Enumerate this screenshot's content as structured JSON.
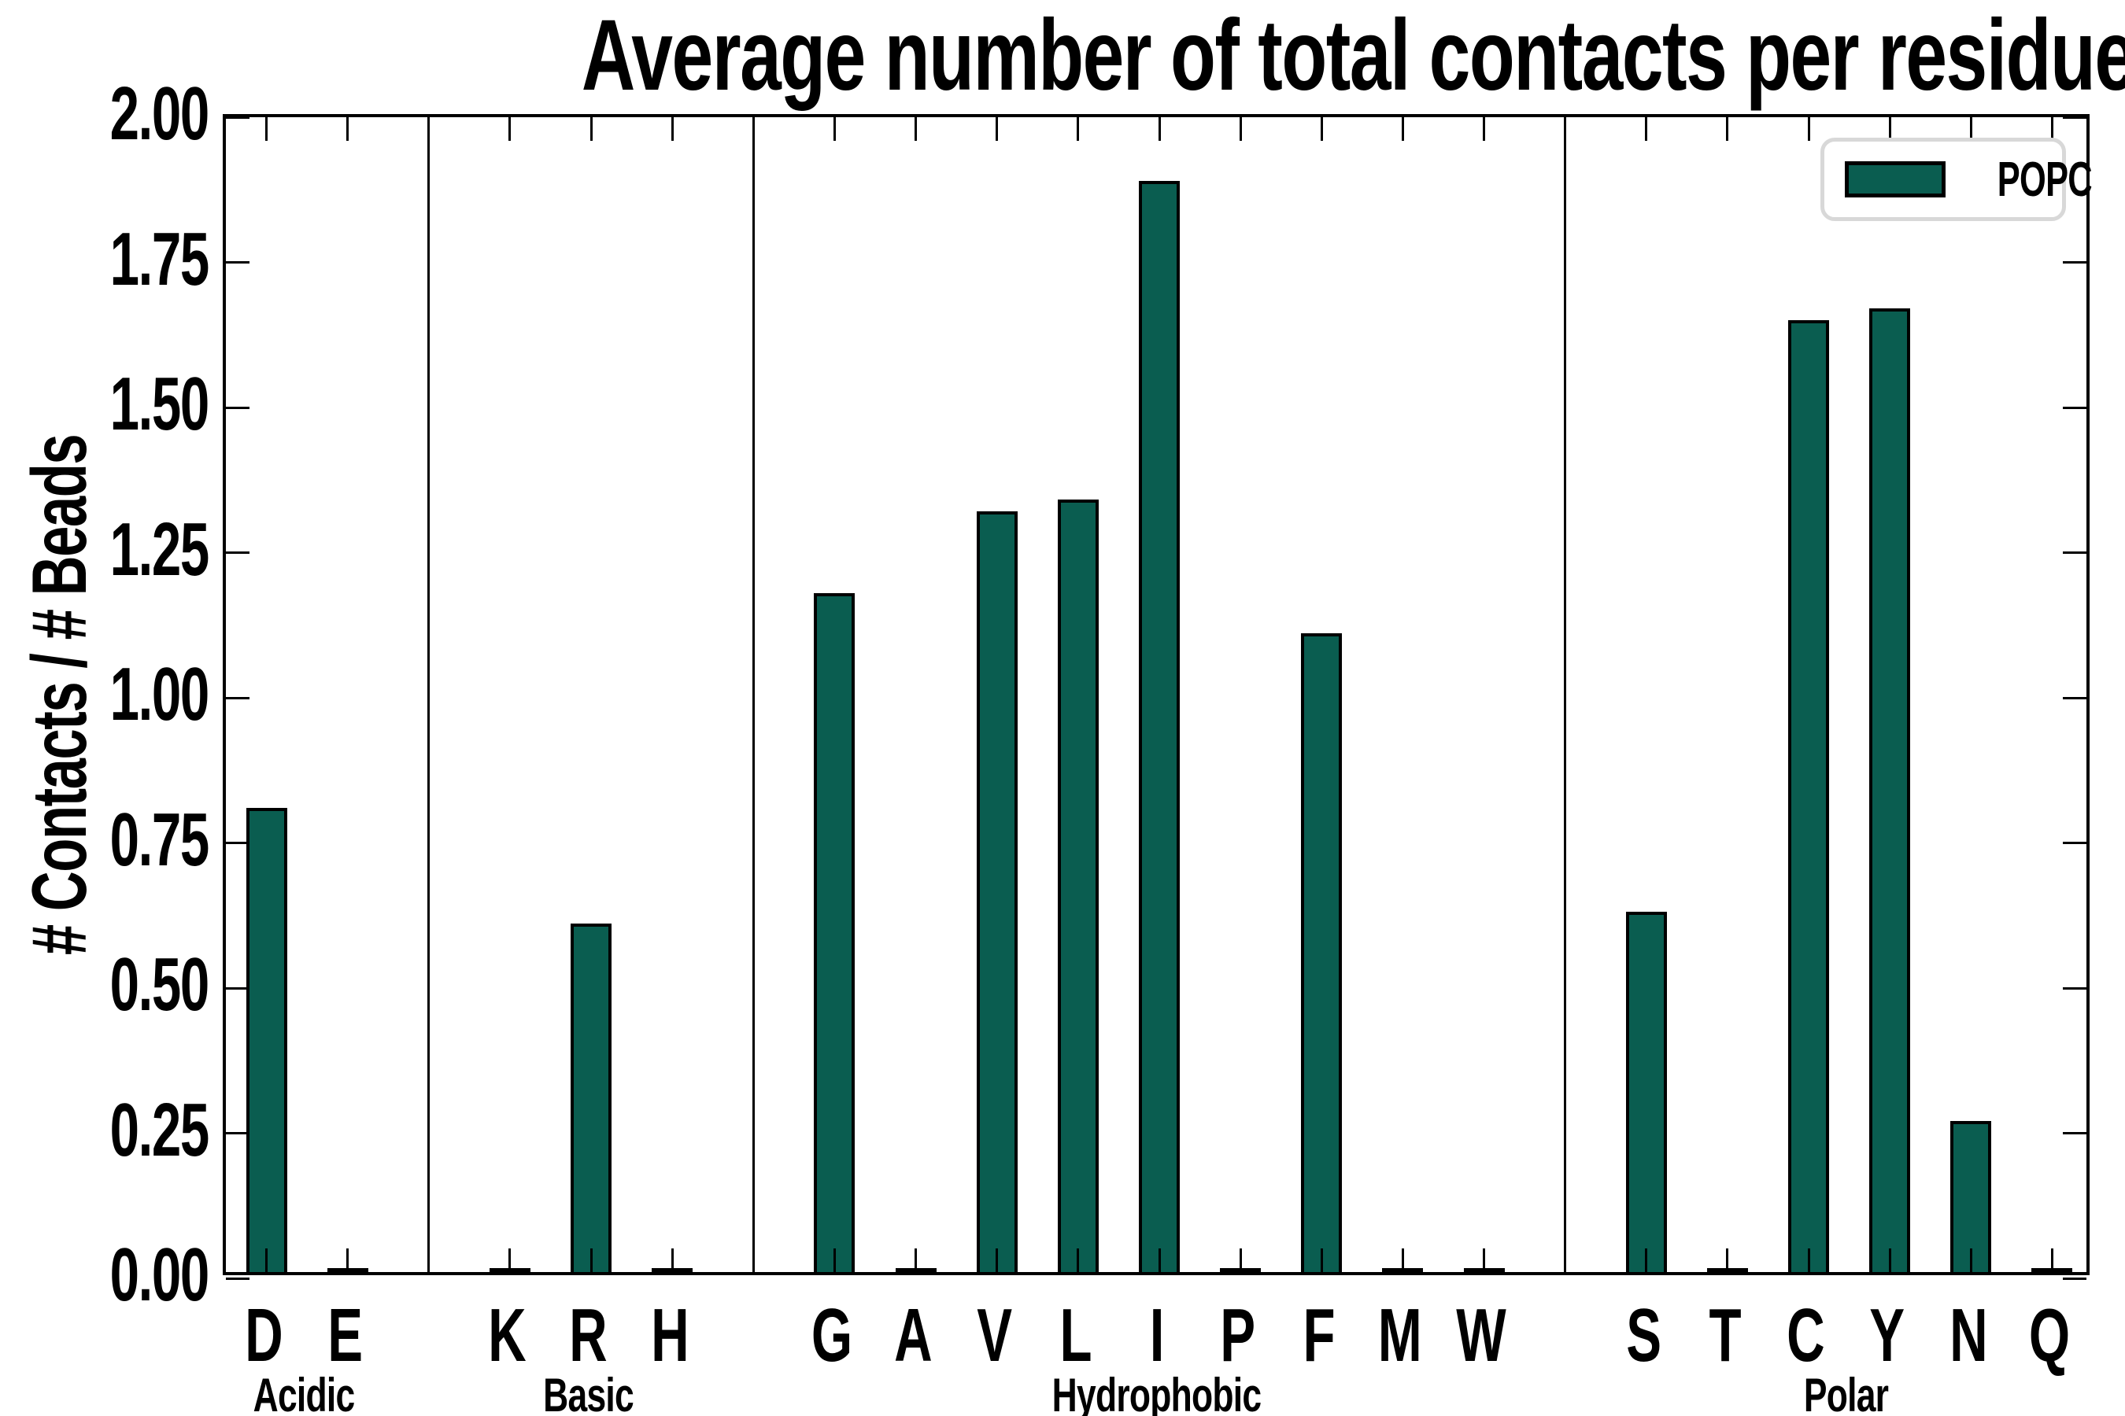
{
  "figure": {
    "title": "Average number of total contacts per residue type per bead",
    "ylabel": "# Contacts / # Beads",
    "background_color": "#ffffff",
    "text_color": "#000000"
  },
  "legend": {
    "label": "POPC",
    "swatch_color": "#0a5d50",
    "swatch_edge_color": "#000000",
    "box_border_color": "#d8d8d8",
    "position": "upper right"
  },
  "chart_data": {
    "type": "bar",
    "title": "Average number of total contacts per residue type per bead",
    "xlabel": "",
    "ylabel": "# Contacts / # Beads",
    "ylim": [
      0.0,
      2.0
    ],
    "ytick_labels": [
      "0.00",
      "0.25",
      "0.50",
      "0.75",
      "1.00",
      "1.25",
      "1.50",
      "1.75",
      "2.00"
    ],
    "grid": false,
    "bar_color": "#0a5d50",
    "bar_edge_color": "#000000",
    "series": [
      {
        "name": "POPC",
        "color": "#0a5d50"
      }
    ],
    "groups": [
      {
        "label": "Acidic",
        "categories": [
          "D",
          "E"
        ],
        "values": [
          0.8,
          0.0
        ]
      },
      {
        "label": "Basic",
        "categories": [
          "K",
          "R",
          "H"
        ],
        "values": [
          0.0,
          0.6,
          0.0
        ]
      },
      {
        "label": "Hydrophobic",
        "categories": [
          "G",
          "A",
          "V",
          "L",
          "I",
          "P",
          "F",
          "M",
          "W"
        ],
        "values": [
          1.17,
          0.0,
          1.31,
          1.33,
          1.88,
          0.0,
          1.1,
          0.0,
          0.0
        ]
      },
      {
        "label": "Polar",
        "categories": [
          "S",
          "T",
          "C",
          "Y",
          "N",
          "Q"
        ],
        "values": [
          0.62,
          0.0,
          1.64,
          1.66,
          0.26,
          0.0
        ]
      }
    ],
    "layout_hint": {
      "slots_total": 23,
      "empty_slot_between_groups": 1,
      "group_divider_lines": true,
      "ticks_direction": "in",
      "zero_bars_shown_as_edge_nub": true
    }
  }
}
